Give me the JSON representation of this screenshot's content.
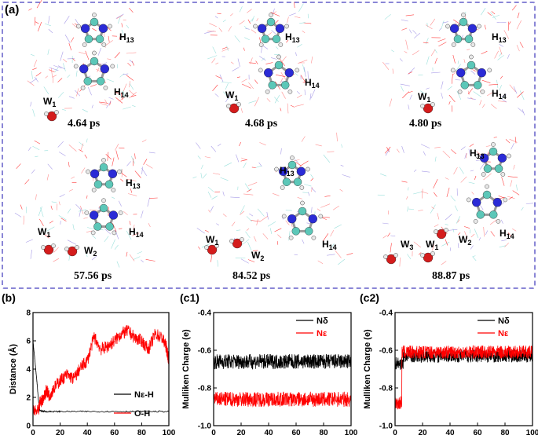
{
  "panel_a": {
    "label": "(a)",
    "frames": [
      {
        "time": "4.64 ps",
        "labels": [
          "W1",
          "H13",
          "H14"
        ]
      },
      {
        "time": "4.68 ps",
        "labels": [
          "W1",
          "H13",
          "H14"
        ]
      },
      {
        "time": "4.80 ps",
        "labels": [
          "W1",
          "H13",
          "H14"
        ]
      },
      {
        "time": "57.56 ps",
        "labels": [
          "W1",
          "W2",
          "H13",
          "H14"
        ]
      },
      {
        "time": "84.52 ps",
        "labels": [
          "W1",
          "W2",
          "H13",
          "H14"
        ]
      },
      {
        "time": "88.87 ps",
        "labels": [
          "W1",
          "W2",
          "W3",
          "H13",
          "H14"
        ]
      }
    ]
  },
  "colors": {
    "black_series": "#000000",
    "red_series": "#ff0000",
    "frame_border": "#8a86d6",
    "carbon": "#5cc7b8",
    "nitrogen": "#2b2bd6",
    "oxygen": "#d41c1c",
    "hydrogen": "#e8e8e8"
  },
  "chart_data": [
    {
      "id": "b",
      "label": "(b)",
      "type": "line",
      "xlabel": "Time (ps)",
      "ylabel": "Distance (Å)",
      "xlim": [
        0,
        100
      ],
      "ylim": [
        0,
        8
      ],
      "xticks": [
        "0",
        "20",
        "40",
        "60",
        "80",
        "100"
      ],
      "yticks": [
        "0",
        "2",
        "4",
        "6",
        "8"
      ],
      "legend": [
        "Nε-H",
        "O-H"
      ],
      "series": [
        {
          "name": "Nε-H",
          "color": "#000000",
          "x": [
            0,
            1,
            2,
            3,
            4,
            5,
            10,
            20,
            40,
            60,
            80,
            100
          ],
          "y": [
            6.0,
            5.0,
            4.0,
            3.0,
            1.8,
            1.05,
            1.0,
            1.0,
            1.0,
            1.0,
            1.0,
            1.0
          ]
        },
        {
          "name": "O-H",
          "color": "#ff0000",
          "x": [
            0,
            4,
            5,
            8,
            10,
            12,
            15,
            20,
            25,
            30,
            35,
            40,
            45,
            50,
            55,
            60,
            65,
            70,
            75,
            80,
            85,
            90,
            95,
            98,
            100
          ],
          "y": [
            1.0,
            1.0,
            1.6,
            2.0,
            2.5,
            2.1,
            2.6,
            3.2,
            3.6,
            3.3,
            4.1,
            4.6,
            6.3,
            5.4,
            5.6,
            6.0,
            6.5,
            6.7,
            6.2,
            6.0,
            5.4,
            6.5,
            6.2,
            5.6,
            4.6
          ]
        }
      ]
    },
    {
      "id": "c1",
      "label": "(c1)",
      "type": "line",
      "xlabel": "Time (ps)",
      "ylabel": "Mulliken Charge (e)",
      "xlim": [
        0,
        100
      ],
      "ylim": [
        -1.0,
        -0.4
      ],
      "xticks": [
        "0",
        "20",
        "40",
        "60",
        "80",
        "100"
      ],
      "yticks": [
        "-0.4",
        "-0.6",
        "-0.8",
        "-1.0"
      ],
      "legend": [
        "Nδ",
        "Nε"
      ],
      "series": [
        {
          "name": "Nδ",
          "color": "#000000",
          "x": [
            0,
            100
          ],
          "mean": -0.66,
          "spread": 0.04
        },
        {
          "name": "Nε",
          "color": "#ff0000",
          "x": [
            0,
            100
          ],
          "mean": -0.86,
          "spread": 0.04
        }
      ]
    },
    {
      "id": "c2",
      "label": "(c2)",
      "type": "line",
      "xlabel": "Time (ps)",
      "ylabel": "Mulliken Charge (e)",
      "xlim": [
        0,
        100
      ],
      "ylim": [
        -1.0,
        -0.4
      ],
      "xticks": [
        "0",
        "20",
        "40",
        "60",
        "80",
        "100"
      ],
      "yticks": [
        "-0.4",
        "-0.6",
        "-0.8",
        "-1.0"
      ],
      "legend": [
        "Nδ",
        "Nε"
      ],
      "series": [
        {
          "name": "Nδ",
          "color": "#000000",
          "x": [
            0,
            100
          ],
          "mean": -0.63,
          "spread": 0.035,
          "early_mean": -0.67
        },
        {
          "name": "Nε",
          "color": "#ff0000",
          "x": [
            0,
            100
          ],
          "mean": -0.61,
          "spread": 0.035,
          "early_mean": -0.88,
          "switch_x": 5
        }
      ]
    }
  ]
}
